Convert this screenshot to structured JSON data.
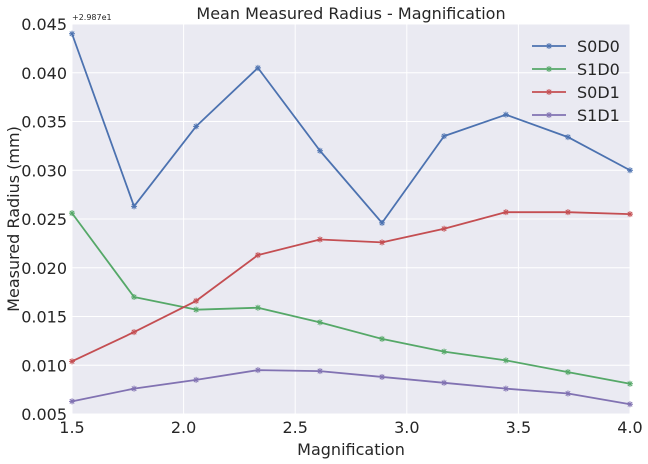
{
  "chart_data": {
    "type": "line",
    "title": "Mean Measured Radius - Magnification",
    "xlabel": "Magnification",
    "ylabel": "Measured Radius (mm)",
    "y_offset_label": "+2.987e1",
    "xlim": [
      1.5,
      4.0
    ],
    "ylim": [
      0.005,
      0.045
    ],
    "x_ticks": [
      "1.5",
      "2.0",
      "2.5",
      "3.0",
      "3.5",
      "4.0"
    ],
    "y_ticks": [
      "0.005",
      "0.010",
      "0.015",
      "0.020",
      "0.025",
      "0.030",
      "0.035",
      "0.040",
      "0.045"
    ],
    "grid": true,
    "legend_position": "top-right",
    "x": [
      1.5,
      1.778,
      2.056,
      2.333,
      2.611,
      2.889,
      3.167,
      3.444,
      3.722,
      4.0
    ],
    "series": [
      {
        "name": "S0D0",
        "color": "#4c72b0",
        "values": [
          0.044,
          0.0263,
          0.0345,
          0.0405,
          0.032,
          0.0246,
          0.0335,
          0.0357,
          0.0334,
          0.03
        ]
      },
      {
        "name": "S1D0",
        "color": "#55a868",
        "values": [
          0.0256,
          0.017,
          0.0157,
          0.0159,
          0.0144,
          0.0127,
          0.0114,
          0.0105,
          0.0093,
          0.0081
        ]
      },
      {
        "name": "S0D1",
        "color": "#c44e52",
        "values": [
          0.0104,
          0.0134,
          0.0166,
          0.0213,
          0.0229,
          0.0226,
          0.024,
          0.0257,
          0.0257,
          0.0255
        ]
      },
      {
        "name": "S1D1",
        "color": "#8172b2",
        "values": [
          0.0063,
          0.0076,
          0.0085,
          0.0095,
          0.0094,
          0.0088,
          0.0082,
          0.0076,
          0.0071,
          0.006
        ]
      }
    ]
  }
}
